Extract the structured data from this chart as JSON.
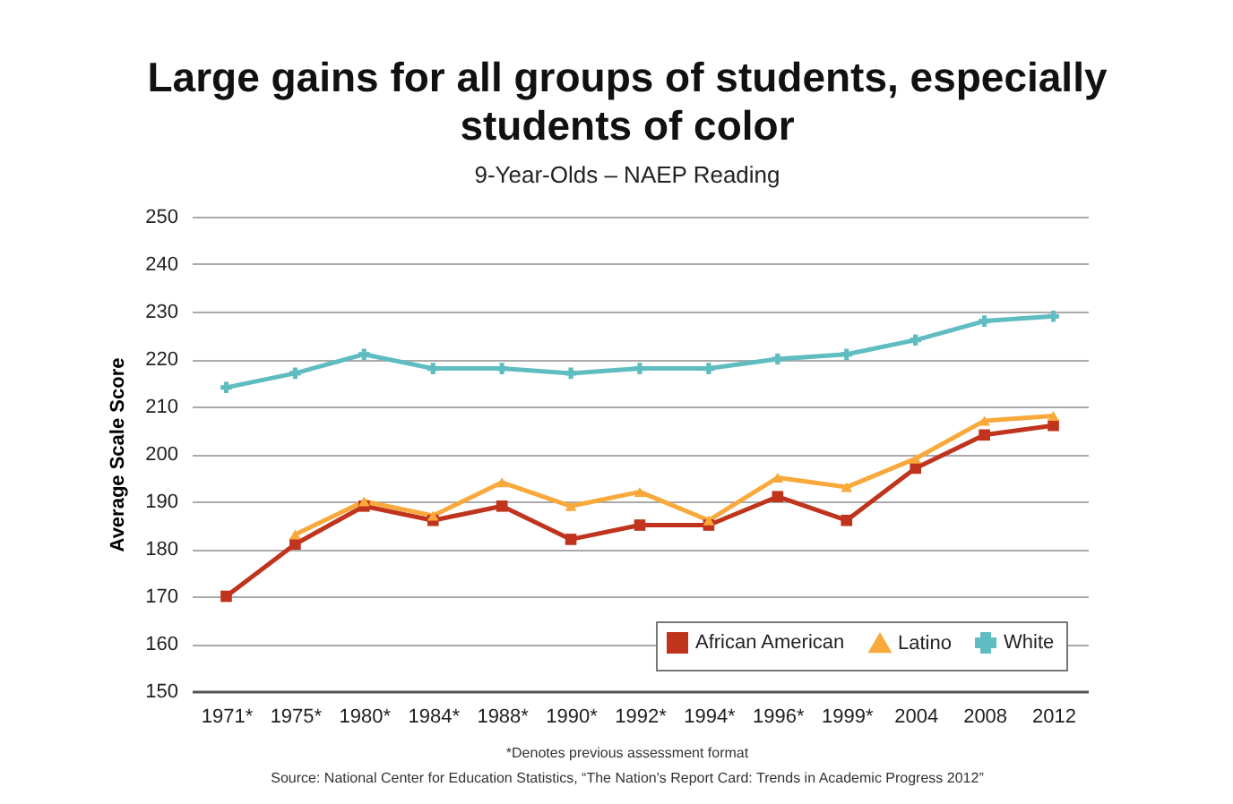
{
  "chart_data": {
    "type": "line",
    "title": "Large gains for all groups of students, especially students of color",
    "subtitle": "9-Year-Olds – NAEP Reading",
    "ylabel": "Average Scale Score",
    "categories": [
      "1971*",
      "1975*",
      "1980*",
      "1984*",
      "1988*",
      "1990*",
      "1992*",
      "1994*",
      "1996*",
      "1999*",
      "2004",
      "2008",
      "2012"
    ],
    "series": [
      {
        "name": "African American",
        "color": "#c0341d",
        "marker": "square",
        "values": [
          170,
          181,
          189,
          186,
          189,
          182,
          185,
          185,
          191,
          186,
          197,
          204,
          206
        ]
      },
      {
        "name": "Latino",
        "color": "#f9a93b",
        "marker": "triangle",
        "values": [
          null,
          183,
          190,
          187,
          194,
          189,
          192,
          186,
          195,
          193,
          199,
          207,
          208
        ]
      },
      {
        "name": "White",
        "color": "#5fbcc0",
        "marker": "cross",
        "values": [
          214,
          217,
          221,
          218,
          218,
          217,
          218,
          218,
          220,
          221,
          224,
          228,
          229
        ]
      }
    ],
    "ylim": [
      150,
      250
    ],
    "yticks": [
      150,
      160,
      170,
      180,
      190,
      200,
      210,
      220,
      230,
      240,
      250
    ],
    "grid": "y",
    "legend": "bottom right",
    "annotations": [
      "*Denotes previous assessment format",
      "Source: National Center for Education Statistics, “The Nation's Report Card: Trends in Academic Progress 2012”"
    ]
  }
}
